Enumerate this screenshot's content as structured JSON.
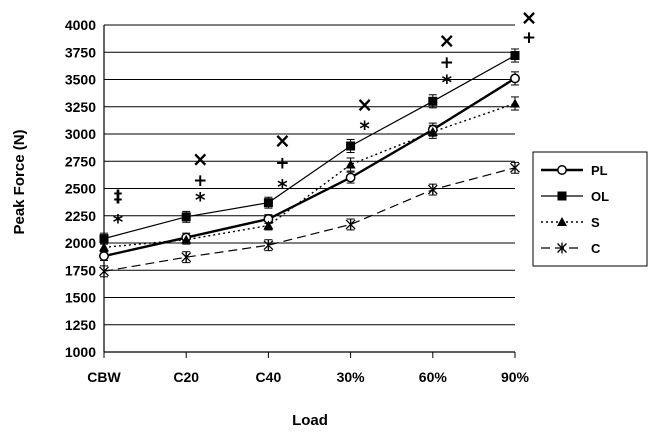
{
  "chart_data": {
    "type": "line",
    "categories": [
      "CBW",
      "C20",
      "C40",
      "30%",
      "60%",
      "90%"
    ],
    "xlabel": "Load",
    "ylabel": "Peak Force (N)",
    "ylim": [
      1000,
      4000
    ],
    "ytick_step": 250,
    "yticks": [
      "1000",
      "1250",
      "1500",
      "1750",
      "2000",
      "2250",
      "2500",
      "2750",
      "3000",
      "3250",
      "3500",
      "3750",
      "4000"
    ],
    "grid": "horizontal",
    "legend": "right",
    "series": [
      {
        "name": "PL",
        "values": [
          1880,
          2050,
          2220,
          2600,
          3040,
          3510
        ],
        "errors": [
          40,
          40,
          40,
          50,
          60,
          60
        ],
        "marker": "open-circle",
        "line": "thick-solid"
      },
      {
        "name": "OL",
        "values": [
          2040,
          2240,
          2370,
          2890,
          3300,
          3720
        ],
        "errors": [
          50,
          50,
          50,
          60,
          60,
          60
        ],
        "marker": "filled-square",
        "line": "thin-solid"
      },
      {
        "name": "S",
        "values": [
          1960,
          2030,
          2160,
          2720,
          3020,
          3280
        ],
        "errors": [
          40,
          40,
          40,
          60,
          60,
          60
        ],
        "marker": "filled-triangle",
        "line": "dotted"
      },
      {
        "name": "C",
        "values": [
          1740,
          1870,
          1980,
          2170,
          2490,
          2690
        ],
        "errors": [
          50,
          50,
          50,
          50,
          50,
          50
        ],
        "marker": "star",
        "line": "dashed"
      }
    ],
    "annotations": [
      {
        "category": "CBW",
        "text": "‡",
        "y": 2430
      },
      {
        "category": "CBW",
        "text": "*",
        "y": 2220
      },
      {
        "category": "C20",
        "text": "×",
        "y": 2760
      },
      {
        "category": "C20",
        "text": "+",
        "y": 2580
      },
      {
        "category": "C20",
        "text": "*",
        "y": 2420
      },
      {
        "category": "C40",
        "text": "×",
        "y": 2930
      },
      {
        "category": "C40",
        "text": "+",
        "y": 2740
      },
      {
        "category": "C40",
        "text": "*",
        "y": 2540
      },
      {
        "category": "30%",
        "text": "×",
        "y": 3260
      },
      {
        "category": "30%",
        "text": "*",
        "y": 3080
      },
      {
        "category": "60%",
        "text": "×",
        "y": 3850
      },
      {
        "category": "60%",
        "text": "+",
        "y": 3660
      },
      {
        "category": "60%",
        "text": "*",
        "y": 3500
      },
      {
        "category": "90%",
        "text": "×",
        "y": 4060
      },
      {
        "category": "90%",
        "text": "+",
        "y": 3890
      }
    ]
  }
}
